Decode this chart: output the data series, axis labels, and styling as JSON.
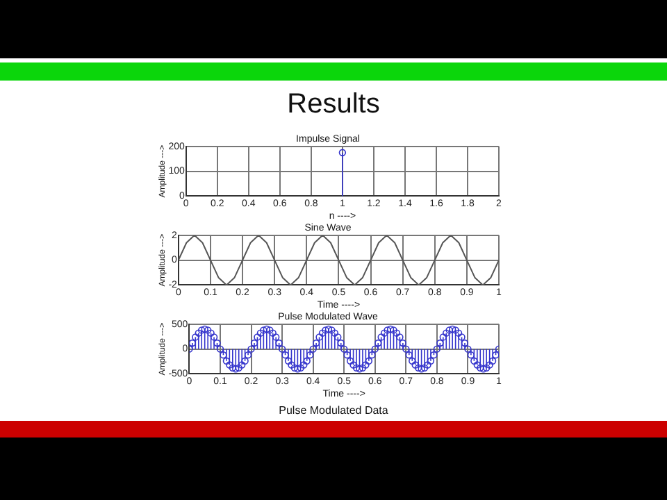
{
  "chart_data": [
    {
      "type": "lollipop",
      "title": "Impulse Signal",
      "xlabel": "n ---->",
      "ylabel": "Amplitude --->",
      "annotations": [
        "Results"
      ],
      "x": [
        1
      ],
      "values": [
        175
      ],
      "color": "#3333cc",
      "marker": "circle",
      "xlim": [
        0,
        2
      ],
      "xticks": [
        0,
        0.2,
        0.4,
        0.6,
        0.8,
        1,
        1.2,
        1.4,
        1.6,
        1.8,
        2
      ],
      "ylim": [
        0,
        200
      ],
      "yticks": [
        0,
        100,
        200
      ],
      "grid": true
    },
    {
      "type": "line",
      "title": "Sine Wave",
      "xlabel": "Time ---->",
      "ylabel": "Amplitude --->",
      "x": [
        0,
        0.025,
        0.05,
        0.075,
        0.1,
        0.125,
        0.15,
        0.175,
        0.2,
        0.225,
        0.25,
        0.275,
        0.3,
        0.325,
        0.35,
        0.375,
        0.4,
        0.425,
        0.45,
        0.475,
        0.5,
        0.525,
        0.55,
        0.575,
        0.6,
        0.625,
        0.65,
        0.675,
        0.7,
        0.725,
        0.75,
        0.775,
        0.8,
        0.825,
        0.85,
        0.875,
        0.9,
        0.925,
        0.95,
        0.975,
        1
      ],
      "values": [
        0,
        1.4,
        2,
        1.4,
        0,
        -1.4,
        -2,
        -1.4,
        0,
        1.4,
        2,
        1.4,
        0,
        -1.4,
        -2,
        -1.4,
        0,
        1.4,
        2,
        1.4,
        0,
        -1.4,
        -2,
        -1.4,
        0,
        1.4,
        2,
        1.4,
        0,
        -1.4,
        -2,
        -1.4,
        0,
        1.4,
        2,
        1.4,
        0,
        -1.4,
        -2,
        -1.4,
        0
      ],
      "color": "#555555",
      "line_style": "solid",
      "xlim": [
        0,
        1
      ],
      "xticks": [
        0,
        0.1,
        0.2,
        0.3,
        0.4,
        0.5,
        0.6,
        0.7,
        0.8,
        0.9,
        1
      ],
      "ylim": [
        -2,
        2
      ],
      "yticks": [
        -2,
        0,
        2
      ],
      "grid": true
    },
    {
      "type": "lollipop",
      "title": "Pulse Modulated Wave",
      "xlabel": "Time ---->",
      "ylabel": "Amplitude --->",
      "annotations": [
        "Pulse Modulated Data"
      ],
      "x": [
        0,
        0.01,
        0.02,
        0.03,
        0.04,
        0.05,
        0.06,
        0.07,
        0.08,
        0.09,
        0.1,
        0.11,
        0.12,
        0.13,
        0.14,
        0.15,
        0.16,
        0.17,
        0.18,
        0.19,
        0.2,
        0.21,
        0.22,
        0.23,
        0.24,
        0.25,
        0.26,
        0.27,
        0.28,
        0.29,
        0.3,
        0.31,
        0.32,
        0.33,
        0.34,
        0.35,
        0.36,
        0.37,
        0.38,
        0.39,
        0.4,
        0.41,
        0.42,
        0.43,
        0.44,
        0.45,
        0.46,
        0.47,
        0.48,
        0.49,
        0.5,
        0.51,
        0.52,
        0.53,
        0.54,
        0.55,
        0.56,
        0.57,
        0.58,
        0.59,
        0.6,
        0.61,
        0.62,
        0.63,
        0.64,
        0.65,
        0.66,
        0.67,
        0.68,
        0.69,
        0.7,
        0.71,
        0.72,
        0.73,
        0.74,
        0.75,
        0.76,
        0.77,
        0.78,
        0.79,
        0.8,
        0.81,
        0.82,
        0.83,
        0.84,
        0.85,
        0.86,
        0.87,
        0.88,
        0.89,
        0.9,
        0.91,
        0.92,
        0.93,
        0.94,
        0.95,
        0.96,
        0.97,
        0.98,
        0.99,
        1
      ],
      "values": [
        0,
        120,
        240,
        320,
        380,
        400,
        380,
        320,
        240,
        120,
        0,
        -120,
        -240,
        -320,
        -380,
        -400,
        -380,
        -320,
        -240,
        -120,
        0,
        120,
        240,
        320,
        380,
        400,
        380,
        320,
        240,
        120,
        0,
        -120,
        -240,
        -320,
        -380,
        -400,
        -380,
        -320,
        -240,
        -120,
        0,
        120,
        240,
        320,
        380,
        400,
        380,
        320,
        240,
        120,
        0,
        -120,
        -240,
        -320,
        -380,
        -400,
        -380,
        -320,
        -240,
        -120,
        0,
        120,
        240,
        320,
        380,
        400,
        380,
        320,
        240,
        120,
        0,
        -120,
        -240,
        -320,
        -380,
        -400,
        -380,
        -320,
        -240,
        -120,
        0,
        120,
        240,
        320,
        380,
        400,
        380,
        320,
        240,
        120,
        0,
        -120,
        -240,
        -320,
        -380,
        -400,
        -380,
        -320,
        -240,
        -120,
        0
      ],
      "color": "#3333cc",
      "marker": "circle",
      "xlim": [
        0,
        1
      ],
      "xticks": [
        0,
        0.1,
        0.2,
        0.3,
        0.4,
        0.5,
        0.6,
        0.7,
        0.8,
        0.9,
        1
      ],
      "ylim": [
        -500,
        500
      ],
      "yticks": [
        -500,
        0,
        500
      ],
      "grid": true
    }
  ]
}
